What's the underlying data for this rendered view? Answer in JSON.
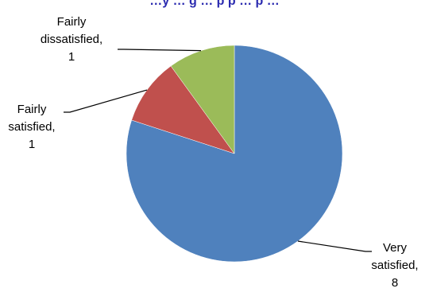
{
  "chart_data": {
    "type": "pie",
    "title": "…y … g … p p … p …",
    "slices": [
      {
        "category": "Very satisfied",
        "value": 8,
        "color": "#4f81bd",
        "label_lines": [
          "Very",
          "satisfied,",
          "8"
        ]
      },
      {
        "category": "Fairly satisfied",
        "value": 1,
        "color": "#c0504d",
        "label_lines": [
          "Fairly",
          "satisfied,",
          "1"
        ]
      },
      {
        "category": "Fairly dissatisfied",
        "value": 1,
        "color": "#9bbb59",
        "label_lines": [
          "Fairly",
          "dissatisfied,",
          "1"
        ]
      }
    ],
    "legend": "none",
    "data_labels": "outside-with-leader-lines"
  }
}
